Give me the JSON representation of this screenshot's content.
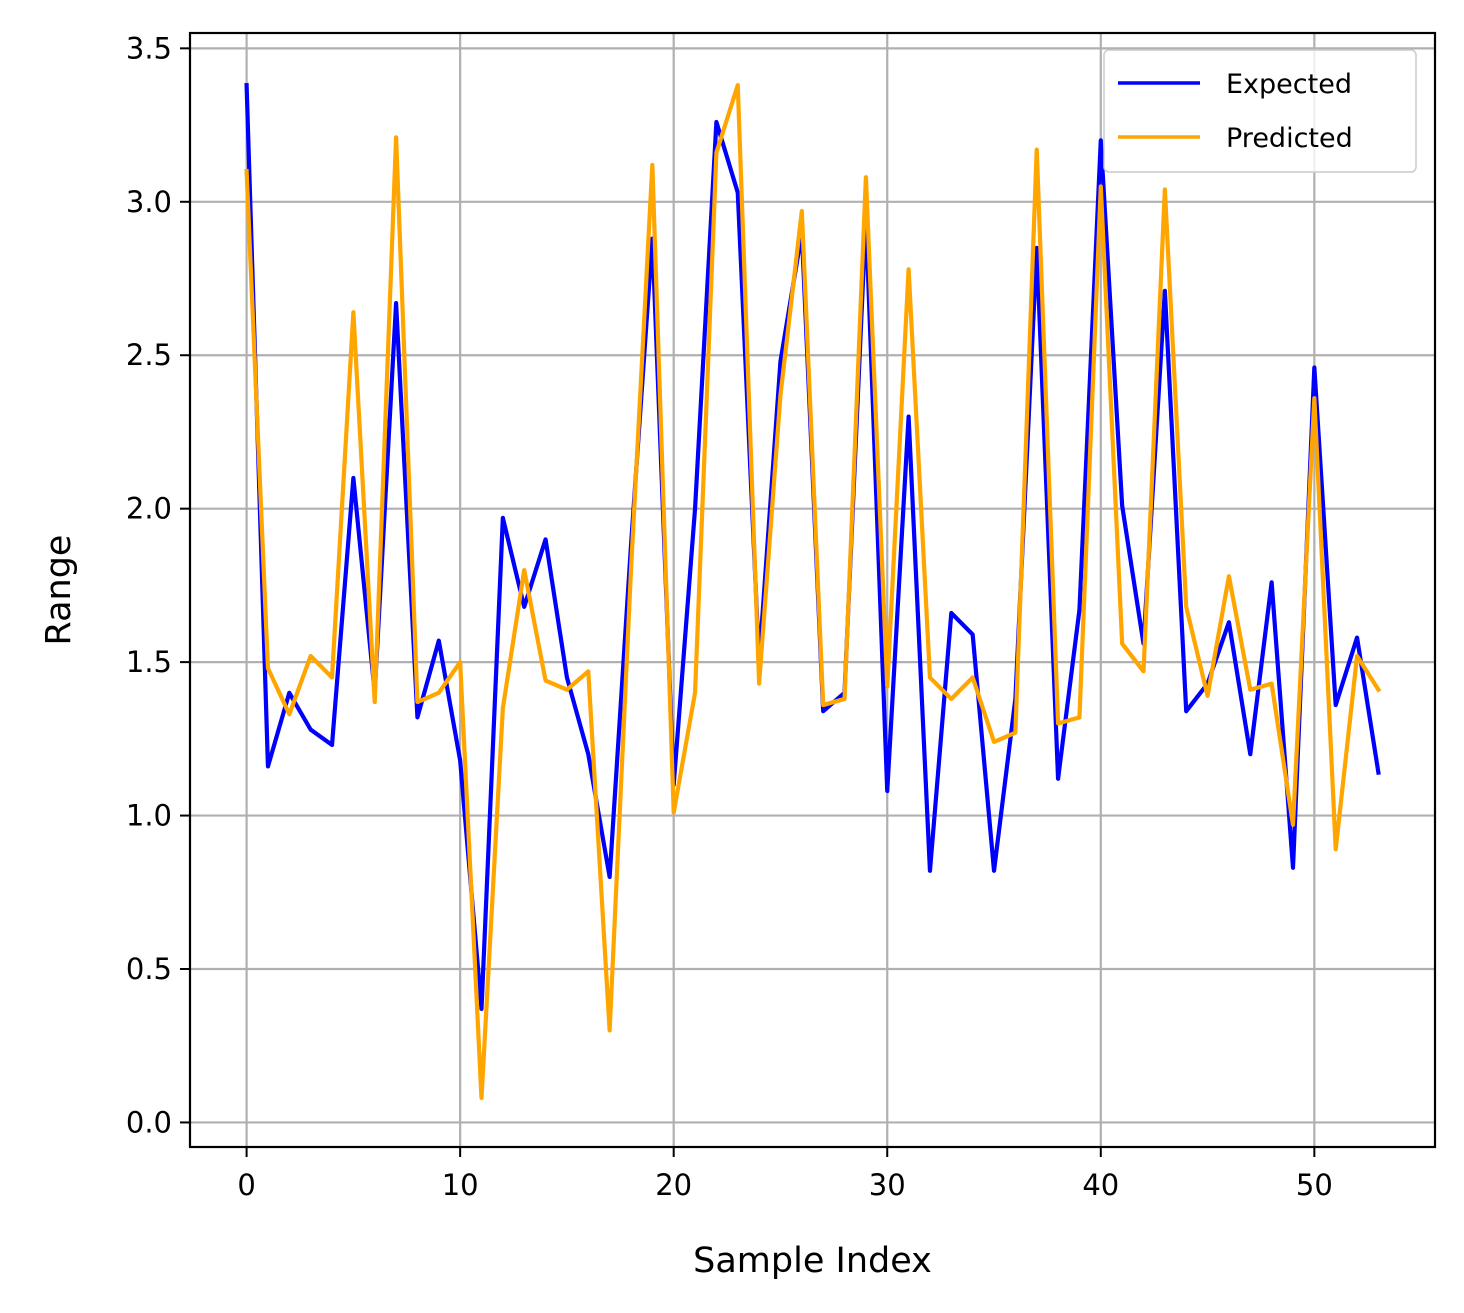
{
  "chart_data": {
    "type": "line",
    "title": "",
    "xlabel": "Sample Index",
    "ylabel": "Range",
    "xlim": [
      -2.65,
      55.65
    ],
    "ylim": [
      -0.08,
      3.55
    ],
    "xticks": [
      0,
      10,
      20,
      30,
      40,
      50
    ],
    "xtick_labels": [
      "0",
      "10",
      "20",
      "30",
      "40",
      "50"
    ],
    "yticks": [
      0.0,
      0.5,
      1.0,
      1.5,
      2.0,
      2.5,
      3.0,
      3.5
    ],
    "ytick_labels": [
      "0.0",
      "0.5",
      "1.0",
      "1.5",
      "2.0",
      "2.5",
      "3.0",
      "3.5"
    ],
    "grid": true,
    "legend_position": "top-right",
    "x": [
      0,
      1,
      2,
      3,
      4,
      5,
      6,
      7,
      8,
      9,
      10,
      11,
      12,
      13,
      14,
      15,
      16,
      17,
      18,
      19,
      20,
      21,
      22,
      23,
      24,
      25,
      26,
      27,
      28,
      29,
      30,
      31,
      32,
      33,
      34,
      35,
      36,
      37,
      38,
      39,
      40,
      41,
      42,
      43,
      44,
      45,
      46,
      47,
      48,
      49,
      50,
      51,
      52,
      53
    ],
    "series": [
      {
        "name": "Expected",
        "color": "#0000ff",
        "values": [
          3.38,
          1.16,
          1.4,
          1.28,
          1.23,
          2.1,
          1.4,
          2.67,
          1.32,
          1.57,
          1.18,
          0.37,
          1.97,
          1.68,
          1.9,
          1.45,
          1.2,
          0.8,
          1.88,
          2.88,
          1.1,
          2.0,
          3.26,
          3.03,
          1.5,
          2.48,
          2.9,
          1.34,
          1.4,
          2.95,
          1.08,
          2.3,
          0.82,
          1.66,
          1.59,
          0.82,
          1.38,
          2.85,
          1.12,
          1.67,
          3.2,
          2.01,
          1.56,
          2.71,
          1.34,
          1.43,
          1.63,
          1.2,
          1.76,
          0.83,
          2.46,
          1.36,
          1.58,
          1.14
        ]
      },
      {
        "name": "Predicted",
        "color": "#ffa500",
        "values": [
          3.1,
          1.48,
          1.33,
          1.52,
          1.45,
          2.64,
          1.37,
          3.21,
          1.37,
          1.4,
          1.5,
          0.08,
          1.35,
          1.8,
          1.44,
          1.41,
          1.47,
          0.3,
          1.8,
          3.12,
          1.01,
          1.4,
          3.16,
          3.38,
          1.43,
          2.37,
          2.97,
          1.36,
          1.38,
          3.08,
          1.42,
          2.78,
          1.45,
          1.38,
          1.45,
          1.24,
          1.27,
          3.17,
          1.3,
          1.32,
          3.05,
          1.56,
          1.47,
          3.04,
          1.68,
          1.39,
          1.78,
          1.41,
          1.43,
          0.97,
          2.36,
          0.89,
          1.52,
          1.41
        ]
      }
    ]
  }
}
